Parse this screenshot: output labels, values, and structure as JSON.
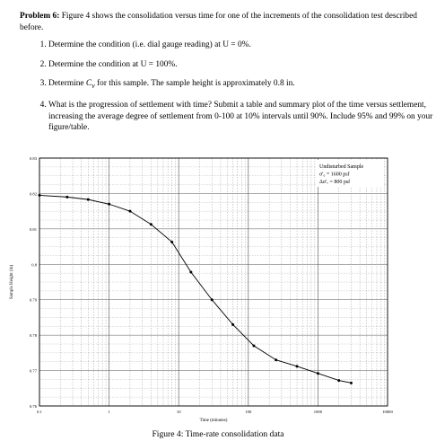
{
  "problem": {
    "heading": "Problem 6:",
    "text": "Figure 4 shows the consolidation versus time for one of the increments of the consolidation test described before.",
    "items": [
      "Determine the condition (i.e. dial gauge reading) at U = 0%.",
      "Determine the condition at U = 100%.",
      "Determine C_v for this sample. The sample height is approximately 0.8 in.",
      "What is the progression of settlement with time? Submit a table and summary plot of the time versus settlement, increasing the average degree of settlement from 0-100 at 10% intervals until 90%. Include 95% and 99% on your figure/table."
    ],
    "item3_parts": {
      "before": "Determine ",
      "symbol": "C",
      "subscript": "v",
      "after": " for this sample. The sample height is approximately 0.8 in."
    }
  },
  "figure": {
    "caption": "Figure 4: Time-rate consolidation data"
  },
  "chart_data": {
    "type": "line",
    "xlabel": "Time (minutes)",
    "ylabel": "Sample Height (in)",
    "xscale": "log",
    "xlim": [
      0.1,
      10000
    ],
    "ylim": [
      0.76,
      0.83
    ],
    "xticks": [
      "0.1",
      "1",
      "10",
      "100",
      "1000",
      "10000"
    ],
    "yticks": [
      "0.83",
      "0.82",
      "0.81",
      "0.8",
      "0.79",
      "0.78",
      "0.77",
      "0.76"
    ],
    "grid": true,
    "legend": {
      "placement": "top-right",
      "lines": [
        "Undisturbed Sample",
        "σ'₀ = 1600 psf",
        "Δσ'ᵥ = 800 psf"
      ]
    },
    "series": [
      {
        "x": [
          0.1,
          0.25,
          0.5,
          1,
          2,
          4,
          8,
          15,
          30,
          60,
          120,
          250,
          500,
          1000,
          2000,
          3000
        ],
        "y": [
          0.8195,
          0.819,
          0.8183,
          0.817,
          0.815,
          0.8113,
          0.8063,
          0.7978,
          0.79,
          0.783,
          0.777,
          0.773,
          0.7712,
          0.7692,
          0.7672,
          0.7665
        ]
      }
    ]
  }
}
